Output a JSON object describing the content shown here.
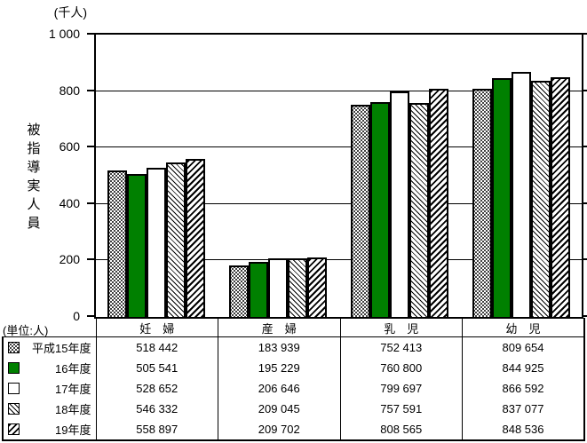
{
  "chart_data": {
    "type": "bar",
    "title": "",
    "unit_label": "(千人)",
    "ylabel": "被指導実人員",
    "values_unit_note": "(単位:人)",
    "ylim": [
      0,
      1000
    ],
    "yticks": [
      0,
      200,
      400,
      600,
      800,
      1000
    ],
    "ytick_labels": [
      "0",
      "200",
      "400",
      "600",
      "800",
      "1 000"
    ],
    "grid": "horizontal",
    "legend_position": "table-below-left",
    "categories": [
      "妊　婦",
      "産　婦",
      "乳　児",
      "幼　児"
    ],
    "series": [
      {
        "name": "平成15年度",
        "pattern": "dots",
        "values": [
          518442,
          183939,
          752413,
          809654
        ],
        "display": [
          "518 442",
          "183 939",
          "752 413",
          "809 654"
        ]
      },
      {
        "name": "16年度",
        "pattern": "green",
        "color": "#008000",
        "values": [
          505541,
          195229,
          760800,
          844925
        ],
        "display": [
          "505 541",
          "195 229",
          "760 800",
          "844 925"
        ]
      },
      {
        "name": "17年度",
        "pattern": "white",
        "values": [
          528652,
          206646,
          799697,
          866592
        ],
        "display": [
          "528 652",
          "206 646",
          "799 697",
          "866 592"
        ]
      },
      {
        "name": "18年度",
        "pattern": "hatch-backslash",
        "values": [
          546332,
          209045,
          757591,
          837077
        ],
        "display": [
          "546 332",
          "209 045",
          "757 591",
          "837 077"
        ]
      },
      {
        "name": "19年度",
        "pattern": "hatch-slash",
        "values": [
          558897,
          209702,
          808565,
          848536
        ],
        "display": [
          "558 897",
          "209 702",
          "808 565",
          "848 536"
        ]
      }
    ]
  }
}
